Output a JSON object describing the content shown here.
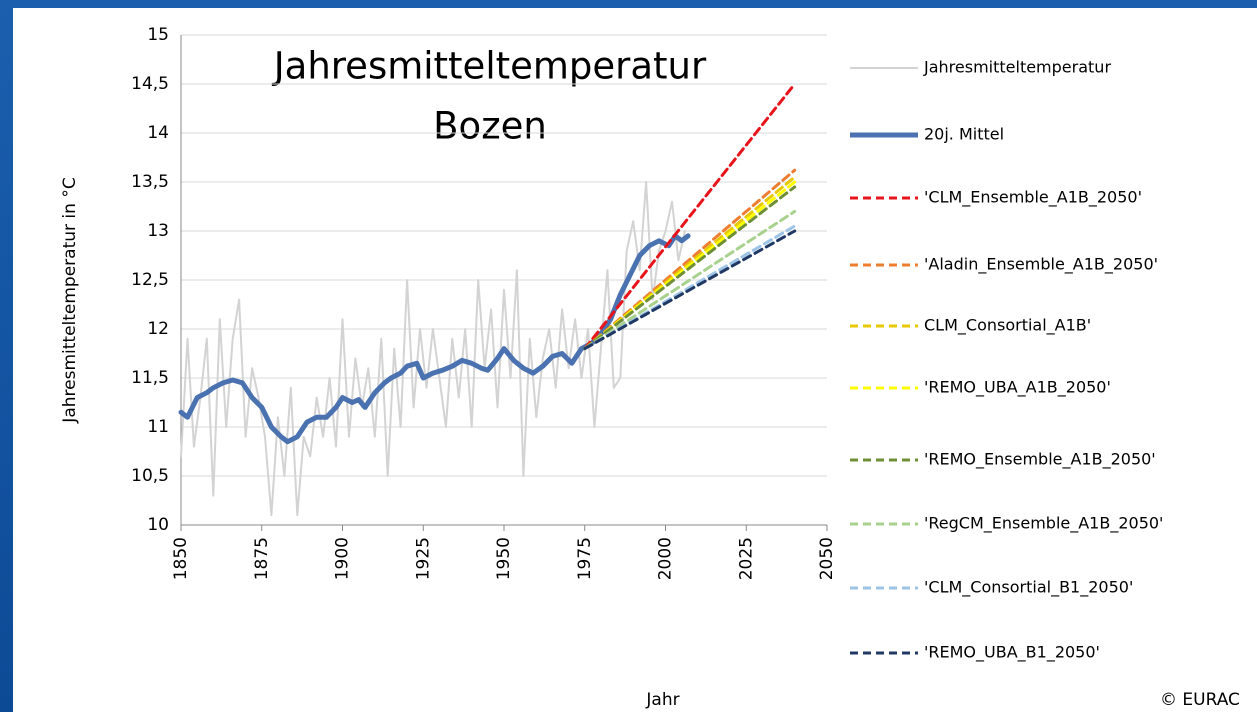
{
  "chart_data": {
    "type": "line",
    "title": [
      "Jahresmitteltemperatur",
      "Bozen"
    ],
    "x_label": "Jahr",
    "y_label": "Jahresmitteltemperatur in °C",
    "copyright": "© EURAC",
    "xlim": [
      1850,
      2050
    ],
    "xticks": [
      1850,
      1875,
      1900,
      1925,
      1950,
      1975,
      2000,
      2025,
      2050
    ],
    "ylim": [
      10,
      15
    ],
    "yticks": [
      10,
      {
        "value": 10.5,
        "label": "10,5"
      },
      11,
      {
        "value": 11.5,
        "label": "11,5"
      },
      12,
      {
        "value": 12.5,
        "label": "12,5"
      },
      13,
      {
        "value": 13.5,
        "label": "13,5"
      },
      14,
      {
        "value": 14.5,
        "label": "14,5"
      },
      15
    ],
    "grid": true,
    "legend": "right",
    "series": [
      {
        "name": "Jahresmitteltemperatur",
        "color": "#d3d3d3",
        "width": 2,
        "line_style": "solid",
        "x": [
          1850,
          1852,
          1854,
          1856,
          1858,
          1860,
          1862,
          1864,
          1866,
          1868,
          1870,
          1872,
          1874,
          1876,
          1878,
          1880,
          1882,
          1884,
          1886,
          1888,
          1890,
          1892,
          1894,
          1896,
          1898,
          1900,
          1902,
          1904,
          1906,
          1908,
          1910,
          1912,
          1914,
          1916,
          1918,
          1920,
          1922,
          1924,
          1926,
          1928,
          1930,
          1932,
          1934,
          1936,
          1938,
          1940,
          1942,
          1944,
          1946,
          1948,
          1950,
          1952,
          1954,
          1956,
          1958,
          1960,
          1962,
          1964,
          1966,
          1968,
          1970,
          1972,
          1974,
          1976,
          1978,
          1980,
          1982,
          1984,
          1986,
          1988,
          1990,
          1992,
          1994,
          1996,
          1998,
          2000,
          2002,
          2004,
          2006
        ],
        "values": [
          10.7,
          11.9,
          10.8,
          11.3,
          11.9,
          10.3,
          12.1,
          11.0,
          11.9,
          12.3,
          10.9,
          11.6,
          11.3,
          10.9,
          10.1,
          11.1,
          10.5,
          11.4,
          10.1,
          10.9,
          10.7,
          11.3,
          10.9,
          11.5,
          10.8,
          12.1,
          10.9,
          11.7,
          11.2,
          11.6,
          10.9,
          11.9,
          10.5,
          11.8,
          11.0,
          12.5,
          11.2,
          12.0,
          11.4,
          12.0,
          11.5,
          11.0,
          11.9,
          11.3,
          12.0,
          11.0,
          12.5,
          11.6,
          12.2,
          11.2,
          12.4,
          11.5,
          12.6,
          10.5,
          11.9,
          11.1,
          11.7,
          12.0,
          11.4,
          12.2,
          11.6,
          12.1,
          11.5,
          12.0,
          11.0,
          11.8,
          12.6,
          11.4,
          11.5,
          12.8,
          13.1,
          12.6,
          13.5,
          12.3,
          12.8,
          13.0,
          13.3,
          12.7,
          13.0
        ]
      },
      {
        "name": "20j. Mittel",
        "color": "#4a72b0",
        "width": 5,
        "line_style": "solid",
        "x": [
          1850,
          1852,
          1855,
          1858,
          1860,
          1863,
          1866,
          1869,
          1872,
          1875,
          1878,
          1881,
          1883,
          1886,
          1889,
          1892,
          1895,
          1898,
          1900,
          1903,
          1905,
          1907,
          1910,
          1913,
          1915,
          1918,
          1920,
          1923,
          1925,
          1928,
          1931,
          1934,
          1937,
          1940,
          1943,
          1945,
          1948,
          1950,
          1953,
          1956,
          1959,
          1962,
          1965,
          1968,
          1971,
          1974,
          1977,
          1980,
          1983,
          1986,
          1989,
          1992,
          1995,
          1998,
          2001,
          2003,
          2005,
          2007
        ],
        "values": [
          11.15,
          11.1,
          11.3,
          11.35,
          11.4,
          11.45,
          11.48,
          11.45,
          11.3,
          11.2,
          11.0,
          10.9,
          10.85,
          10.9,
          11.05,
          11.1,
          11.1,
          11.2,
          11.3,
          11.25,
          11.28,
          11.2,
          11.35,
          11.45,
          11.5,
          11.55,
          11.62,
          11.65,
          11.5,
          11.55,
          11.58,
          11.62,
          11.68,
          11.65,
          11.6,
          11.58,
          11.7,
          11.8,
          11.68,
          11.6,
          11.55,
          11.62,
          11.72,
          11.75,
          11.65,
          11.8,
          11.85,
          11.95,
          12.1,
          12.35,
          12.55,
          12.75,
          12.85,
          12.9,
          12.85,
          12.95,
          12.9,
          12.95
        ]
      },
      {
        "name": "'CLM_Ensemble_A1B_2050'",
        "color": "#e8141b",
        "width": 3,
        "line_style": "dashed",
        "x": [
          1975,
          2040
        ],
        "values": [
          11.8,
          14.5
        ]
      },
      {
        "name": "'Aladin_Ensemble_A1B_2050'",
        "color": "#ed7d31",
        "width": 3,
        "line_style": "dashed",
        "x": [
          1975,
          2040
        ],
        "values": [
          11.8,
          13.62
        ]
      },
      {
        "name": "CLM_Consortial_A1B'",
        "color": "#e8c800",
        "width": 3,
        "line_style": "dashed",
        "x": [
          1975,
          2040
        ],
        "values": [
          11.8,
          13.55
        ]
      },
      {
        "name": "'REMO_UBA_A1B_2050'",
        "color": "#ffff00",
        "width": 3,
        "line_style": "dashed",
        "x": [
          1975,
          2040
        ],
        "values": [
          11.8,
          13.5
        ]
      },
      {
        "name": "'REMO_Ensemble_A1B_2050'",
        "color": "#6f8f37",
        "width": 3,
        "line_style": "dashed",
        "x": [
          1975,
          2040
        ],
        "values": [
          11.8,
          13.45
        ]
      },
      {
        "name": "'RegCM_Ensemble_A1B_2050'",
        "color": "#a9d18e",
        "width": 3,
        "line_style": "dashed",
        "x": [
          1975,
          2040
        ],
        "values": [
          11.8,
          13.2
        ]
      },
      {
        "name": "'CLM_Consortial_B1_2050'",
        "color": "#9dc3e6",
        "width": 3,
        "line_style": "dashed",
        "x": [
          1975,
          2040
        ],
        "values": [
          11.8,
          13.05
        ]
      },
      {
        "name": "'REMO_UBA_B1_2050'",
        "color": "#1f3864",
        "width": 3,
        "line_style": "dashed",
        "x": [
          1975,
          2040
        ],
        "values": [
          11.8,
          13.0
        ]
      }
    ]
  }
}
